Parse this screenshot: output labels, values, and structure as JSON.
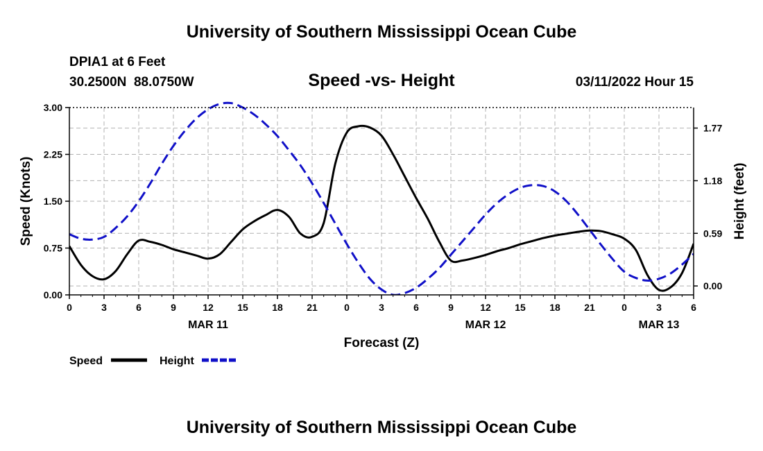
{
  "page": {
    "top_title": "University of Southern Mississippi Ocean Cube",
    "bottom_title": "University of Southern Mississippi Ocean Cube",
    "station": "DPIA1 at 6 Feet",
    "coords": "30.2500N  88.0750W",
    "chart_title": "Speed -vs- Height",
    "datetime": "03/11/2022 Hour 15"
  },
  "colors": {
    "speed": "#000000",
    "height": "#1010c8",
    "grid": "#b0b0b0",
    "axis": "#000000"
  },
  "chart_data": {
    "type": "line",
    "title": "Speed -vs- Height",
    "xlabel": "Forecast (Z)",
    "ylabel": "Speed (Knots)",
    "y2label": "Height (feet)",
    "x_range": [
      0,
      54
    ],
    "ylim": [
      0,
      3.0
    ],
    "y2lim": [
      -0.1,
      2.0
    ],
    "x_ticks": [
      0,
      3,
      6,
      9,
      12,
      15,
      18,
      21,
      24,
      27,
      30,
      33,
      36,
      39,
      42,
      45,
      48,
      51,
      54
    ],
    "x_tick_labels": [
      "0",
      "3",
      "6",
      "9",
      "12",
      "15",
      "18",
      "21",
      "0",
      "3",
      "6",
      "9",
      "12",
      "15",
      "18",
      "21",
      "0",
      "3",
      "6"
    ],
    "y_ticks": [
      0,
      0.75,
      1.5,
      2.25,
      3.0
    ],
    "y_tick_labels": [
      "0.00",
      "0.75",
      "1.50",
      "2.25",
      "3.00"
    ],
    "y2_ticks": [
      0.0,
      0.59,
      1.18,
      1.77
    ],
    "y2_tick_labels": [
      "0.00",
      "0.59",
      "1.18",
      "1.77"
    ],
    "date_labels": [
      {
        "x": 12,
        "label": "MAR 11"
      },
      {
        "x": 36,
        "label": "MAR 12"
      },
      {
        "x": 51,
        "label": "MAR 13"
      }
    ],
    "legend": [
      {
        "name": "Speed",
        "color": "#000000",
        "style": "solid"
      },
      {
        "name": "Height",
        "color": "#1010c8",
        "style": "dashed"
      }
    ],
    "series": [
      {
        "name": "Speed",
        "axis": "left",
        "x": [
          0,
          1,
          2,
          3,
          4,
          5,
          6,
          7,
          8,
          9,
          10,
          11,
          12,
          13,
          14,
          15,
          16,
          17,
          18,
          19,
          20,
          21,
          22,
          23,
          24,
          25,
          26,
          27,
          28,
          29,
          30,
          31,
          32,
          33,
          34,
          35,
          36,
          37,
          38,
          39,
          40,
          41,
          42,
          43,
          44,
          45,
          46,
          47,
          48,
          49,
          50,
          51,
          52,
          53,
          54
        ],
        "values": [
          0.78,
          0.48,
          0.3,
          0.25,
          0.38,
          0.65,
          0.87,
          0.85,
          0.8,
          0.73,
          0.68,
          0.63,
          0.58,
          0.65,
          0.85,
          1.05,
          1.18,
          1.28,
          1.36,
          1.25,
          0.98,
          0.93,
          1.15,
          2.1,
          2.6,
          2.7,
          2.68,
          2.55,
          2.25,
          1.9,
          1.55,
          1.22,
          0.85,
          0.55,
          0.55,
          0.59,
          0.64,
          0.7,
          0.75,
          0.81,
          0.86,
          0.91,
          0.95,
          0.98,
          1.01,
          1.03,
          1.02,
          0.97,
          0.9,
          0.72,
          0.32,
          0.08,
          0.12,
          0.35,
          0.82
        ]
      },
      {
        "name": "Height",
        "axis": "right",
        "x": [
          0,
          1,
          2,
          3,
          4,
          5,
          6,
          7,
          8,
          9,
          10,
          11,
          12,
          13,
          14,
          15,
          16,
          17,
          18,
          19,
          20,
          21,
          22,
          23,
          24,
          25,
          26,
          27,
          28,
          29,
          30,
          31,
          32,
          33,
          34,
          35,
          36,
          37,
          38,
          39,
          40,
          41,
          42,
          43,
          44,
          45,
          46,
          47,
          48,
          49,
          50,
          51,
          52,
          53,
          54
        ],
        "values": [
          0.58,
          0.53,
          0.52,
          0.55,
          0.65,
          0.78,
          0.95,
          1.15,
          1.37,
          1.57,
          1.74,
          1.88,
          1.98,
          2.04,
          2.05,
          2.0,
          1.92,
          1.81,
          1.68,
          1.52,
          1.35,
          1.15,
          0.93,
          0.7,
          0.47,
          0.26,
          0.08,
          -0.04,
          -0.1,
          -0.08,
          -0.02,
          0.08,
          0.2,
          0.35,
          0.5,
          0.65,
          0.8,
          0.93,
          1.03,
          1.1,
          1.13,
          1.12,
          1.06,
          0.95,
          0.8,
          0.63,
          0.46,
          0.3,
          0.16,
          0.09,
          0.06,
          0.08,
          0.14,
          0.24,
          0.36
        ]
      }
    ]
  }
}
